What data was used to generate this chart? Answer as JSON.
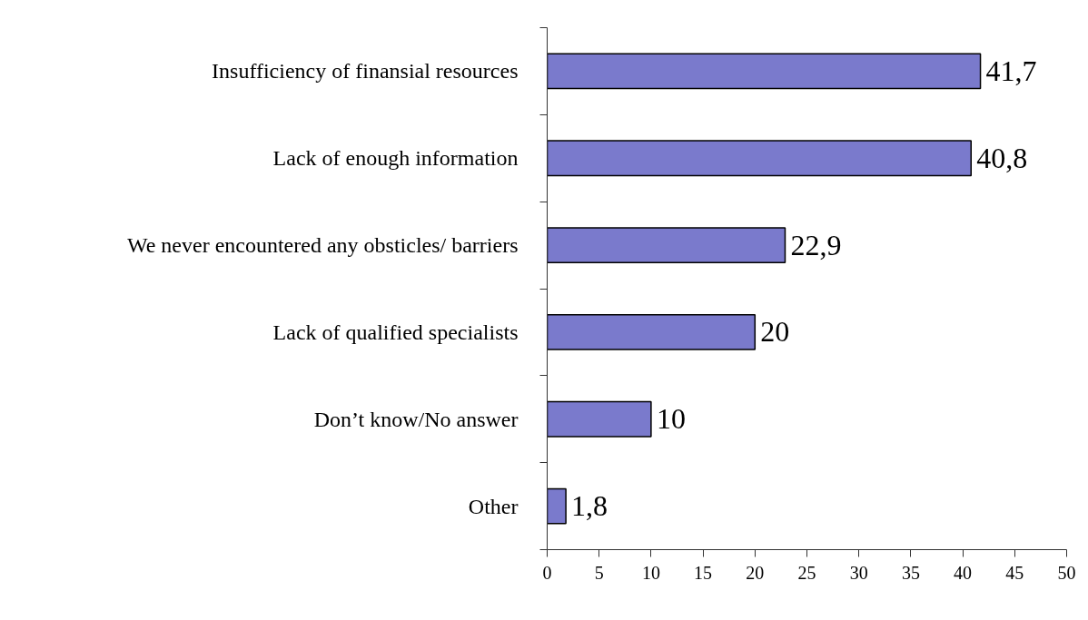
{
  "chart_data": {
    "type": "bar",
    "orientation": "horizontal",
    "categories": [
      "Insufficiency of finansial resources",
      "Lack of enough information",
      "We never encountered any obsticles/ barriers",
      "Lack of qualified specialists",
      "Don’t know/No answer",
      "Other"
    ],
    "values": [
      41.7,
      40.8,
      22.9,
      20,
      10,
      1.8
    ],
    "value_labels": [
      "41,7",
      "40,8",
      "22,9",
      "20",
      "10",
      "1,8"
    ],
    "color": "#7a7acc",
    "xlim": [
      0,
      50
    ],
    "xticks": [
      0,
      5,
      10,
      15,
      20,
      25,
      30,
      35,
      40,
      45,
      50
    ]
  }
}
